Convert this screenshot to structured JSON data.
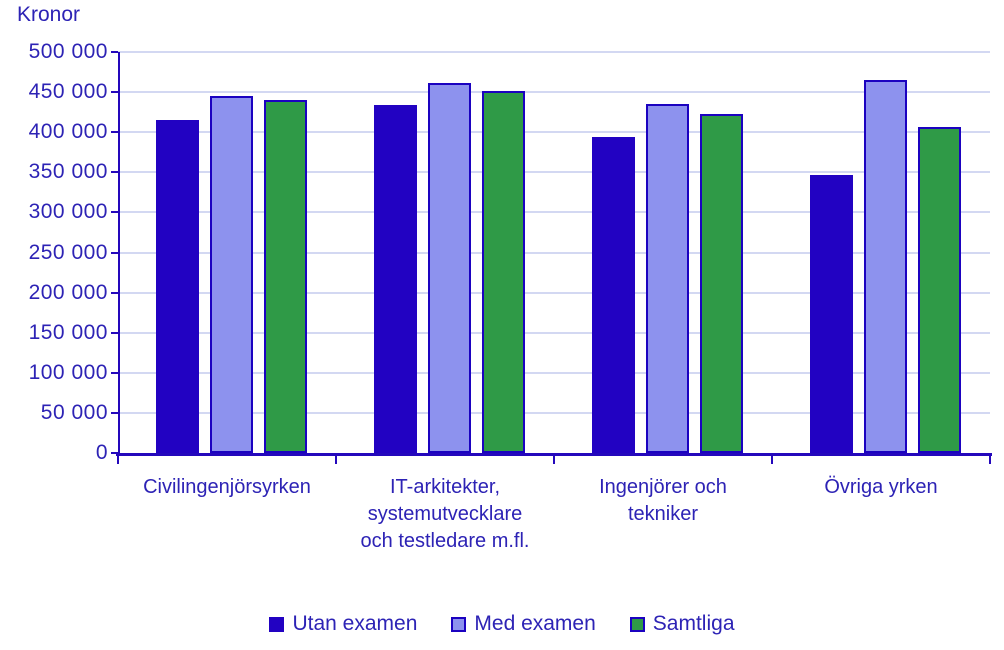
{
  "chart_data": {
    "type": "bar",
    "title": "Kronor",
    "categories": [
      "Civilingenjörsyrken",
      "IT-arkitekter, systemutvecklare och testledare m.fl.",
      "Ingenjörer och tekniker",
      "Övriga yrken"
    ],
    "category_lines": [
      [
        "Civilingenjörsyrken"
      ],
      [
        "IT-arkitekter,",
        "systemutvecklare",
        "och testledare m.fl."
      ],
      [
        "Ingenjörer och",
        "tekniker"
      ],
      [
        "Övriga yrken"
      ]
    ],
    "series": [
      {
        "name": "Utan examen",
        "fill": "#2202c2",
        "border": "#2202c2",
        "values": [
          415000,
          434000,
          394000,
          347000
        ]
      },
      {
        "name": "Med examen",
        "fill": "#8d92ee",
        "border": "#1b02c0",
        "values": [
          445000,
          461000,
          435000,
          465000
        ]
      },
      {
        "name": "Samtliga",
        "fill": "#2f9a47",
        "border": "#1b02c0",
        "values": [
          440000,
          451000,
          423000,
          407000
        ]
      }
    ],
    "ylabel": "Kronor",
    "xlabel": "",
    "ylim": [
      0,
      500000
    ],
    "ytick_step": 50000,
    "ytick_labels": [
      "0",
      "50 000",
      "100 000",
      "150 000",
      "200 000",
      "250 000",
      "300 000",
      "350 000",
      "400 000",
      "450 000",
      "500 000"
    ],
    "grid": true,
    "legend_position": "bottom",
    "colors": {
      "axis": "#2408bc",
      "grid": "#d3d8f2",
      "text": "#2d23b5",
      "background": "#ffffff"
    }
  }
}
